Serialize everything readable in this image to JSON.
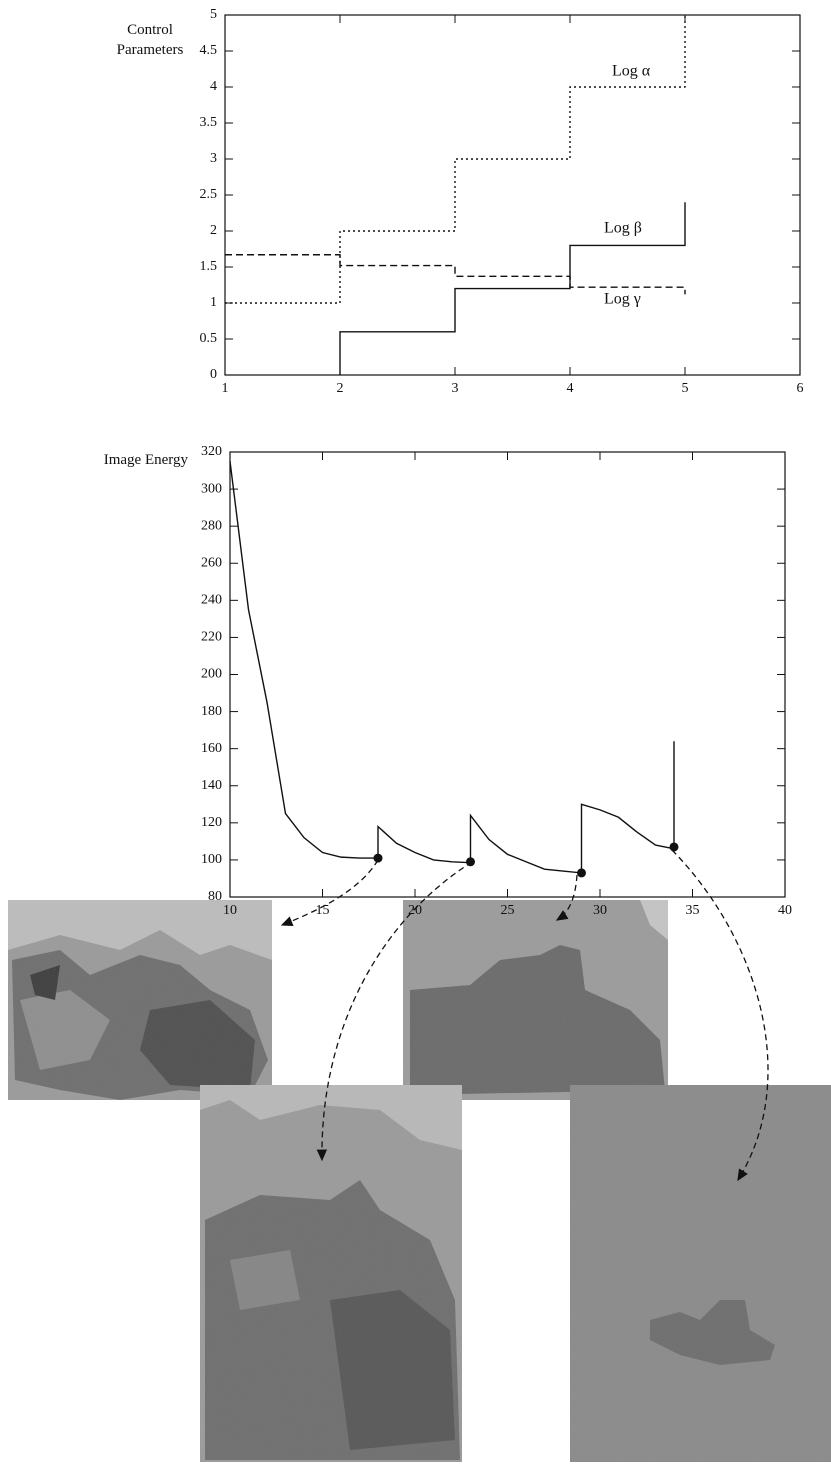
{
  "chart_data": [
    {
      "type": "line",
      "y_label": "Control Parameters",
      "xlim": [
        1,
        6
      ],
      "xticks": [
        1,
        2,
        3,
        4,
        5,
        6
      ],
      "ylim": [
        0,
        5
      ],
      "yticks": [
        0,
        0.5,
        1,
        1.5,
        2,
        2.5,
        3,
        3.5,
        4,
        4.5,
        5
      ],
      "series": [
        {
          "name": "Log α",
          "color": "#111",
          "style": "dotted",
          "x": [
            1,
            2,
            2,
            3,
            3,
            4,
            4,
            5,
            5
          ],
          "values": [
            1,
            1,
            2,
            2,
            3,
            3,
            4,
            4,
            5
          ]
        },
        {
          "name": "Log β",
          "color": "#111",
          "style": "solid",
          "x": [
            2,
            2,
            3,
            3,
            4,
            4,
            5,
            5
          ],
          "values": [
            0,
            0.6,
            0.6,
            1.2,
            1.2,
            1.8,
            1.8,
            2.4
          ]
        },
        {
          "name": "Log γ",
          "color": "#111",
          "style": "dashed",
          "x": [
            1,
            2,
            2,
            3,
            3,
            4,
            4,
            5,
            5
          ],
          "values": [
            1.67,
            1.67,
            1.52,
            1.52,
            1.37,
            1.37,
            1.22,
            1.22,
            1.12
          ]
        }
      ]
    },
    {
      "type": "line",
      "y_label": "Image Energy",
      "xlim": [
        10,
        40
      ],
      "xticks": [
        10,
        15,
        20,
        25,
        30,
        35,
        40
      ],
      "ylim": [
        80,
        320
      ],
      "yticks": [
        80,
        100,
        120,
        140,
        160,
        180,
        200,
        220,
        240,
        260,
        280,
        300,
        320
      ],
      "series": [
        {
          "color": "#111",
          "style": "solid",
          "x": [
            10,
            11,
            12,
            13,
            14,
            15,
            16,
            17,
            18,
            18,
            19,
            20,
            21,
            22,
            23,
            23,
            24,
            25,
            26,
            27,
            28,
            29,
            29,
            30,
            31,
            32,
            33,
            34,
            34
          ],
          "values": [
            315,
            235,
            185,
            125,
            112,
            104,
            101.5,
            101,
            101,
            118,
            109,
            104,
            100,
            99,
            98.5,
            124,
            111,
            103,
            99,
            95,
            94,
            93,
            130,
            127,
            123,
            115,
            108,
            106,
            164
          ]
        }
      ],
      "points": {
        "color": "#111",
        "x": [
          18,
          23,
          29,
          34
        ],
        "values": [
          101,
          99,
          93,
          107
        ]
      }
    }
  ]
}
